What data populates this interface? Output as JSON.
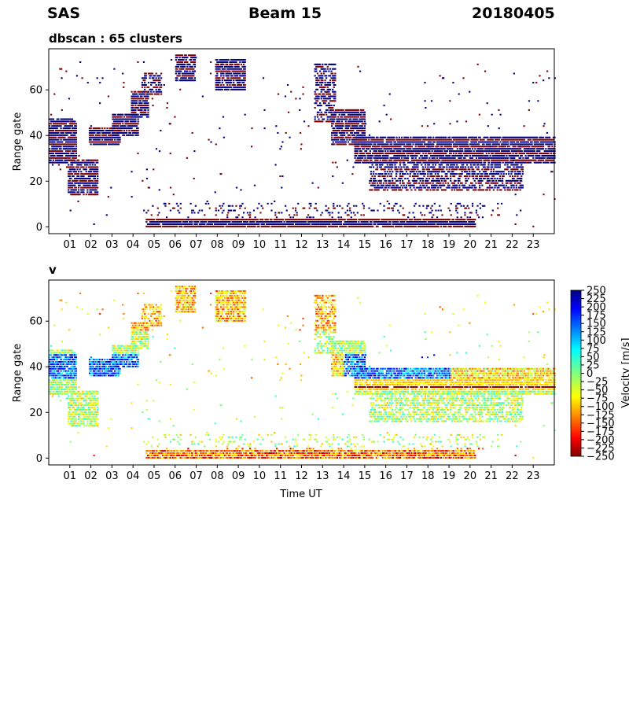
{
  "header": {
    "left": "SAS",
    "center": "Beam 15",
    "right": "20180405"
  },
  "chart_data": [
    {
      "type": "heatmap",
      "title": "dbscan : 65 clusters",
      "xlabel": "",
      "ylabel": "Range gate",
      "xlim": [
        0,
        24
      ],
      "ylim": [
        -3,
        78
      ],
      "x_ticks": [
        "01",
        "02",
        "03",
        "04",
        "05",
        "06",
        "07",
        "08",
        "09",
        "10",
        "11",
        "12",
        "13",
        "14",
        "15",
        "16",
        "17",
        "18",
        "19",
        "20",
        "21",
        "22",
        "23"
      ],
      "y_ticks": [
        0,
        20,
        40,
        60
      ],
      "cluster_colors": [
        "#000080",
        "#800000",
        "#0000a0",
        "#7a0000"
      ],
      "regions": [
        {
          "t0": 0.0,
          "t1": 1.3,
          "g0": 28,
          "g1": 48,
          "density": 0.85
        },
        {
          "t0": 0.9,
          "t1": 2.3,
          "g0": 14,
          "g1": 30,
          "density": 0.75
        },
        {
          "t0": 1.9,
          "t1": 3.4,
          "g0": 36,
          "g1": 44,
          "density": 0.9
        },
        {
          "t0": 3.0,
          "t1": 4.2,
          "g0": 40,
          "g1": 50,
          "density": 0.85
        },
        {
          "t0": 3.9,
          "t1": 4.7,
          "g0": 48,
          "g1": 60,
          "density": 0.8
        },
        {
          "t0": 4.4,
          "t1": 5.3,
          "g0": 58,
          "g1": 68,
          "density": 0.5
        },
        {
          "t0": 6.0,
          "t1": 6.9,
          "g0": 64,
          "g1": 76,
          "density": 0.8
        },
        {
          "t0": 7.9,
          "t1": 9.3,
          "g0": 60,
          "g1": 74,
          "density": 0.8
        },
        {
          "t0": 12.6,
          "t1": 13.6,
          "g0": 46,
          "g1": 72,
          "density": 0.6
        },
        {
          "t0": 13.4,
          "t1": 15.0,
          "g0": 36,
          "g1": 52,
          "density": 0.85
        },
        {
          "t0": 14.5,
          "t1": 24.0,
          "g0": 28,
          "g1": 40,
          "density": 0.85
        },
        {
          "t0": 15.2,
          "t1": 22.5,
          "g0": 16,
          "g1": 28,
          "density": 0.55
        },
        {
          "t0": 4.6,
          "t1": 20.2,
          "g0": 0,
          "g1": 4,
          "density": 0.9
        },
        {
          "t0": 4.6,
          "t1": 21.5,
          "g0": 4,
          "g1": 11,
          "density": 0.12
        }
      ]
    },
    {
      "type": "heatmap",
      "title": "v",
      "xlabel": "Time UT",
      "ylabel": "Range gate",
      "xlim": [
        0,
        24
      ],
      "ylim": [
        -3,
        78
      ],
      "x_ticks": [
        "01",
        "02",
        "03",
        "04",
        "05",
        "06",
        "07",
        "08",
        "09",
        "10",
        "11",
        "12",
        "13",
        "14",
        "15",
        "16",
        "17",
        "18",
        "19",
        "20",
        "21",
        "22",
        "23"
      ],
      "y_ticks": [
        0,
        20,
        40,
        60
      ],
      "colorbar": {
        "label": "Velocity [m/s]",
        "range": [
          -250,
          250
        ],
        "ticks": [
          "250",
          "225",
          "200",
          "175",
          "150",
          "125",
          "100",
          "75",
          "50",
          "25",
          "0",
          "−25",
          "−50",
          "−75",
          "−100",
          "−125",
          "−150",
          "−175",
          "−200",
          "−225",
          "−250"
        ],
        "colormap": "jet"
      }
    }
  ]
}
